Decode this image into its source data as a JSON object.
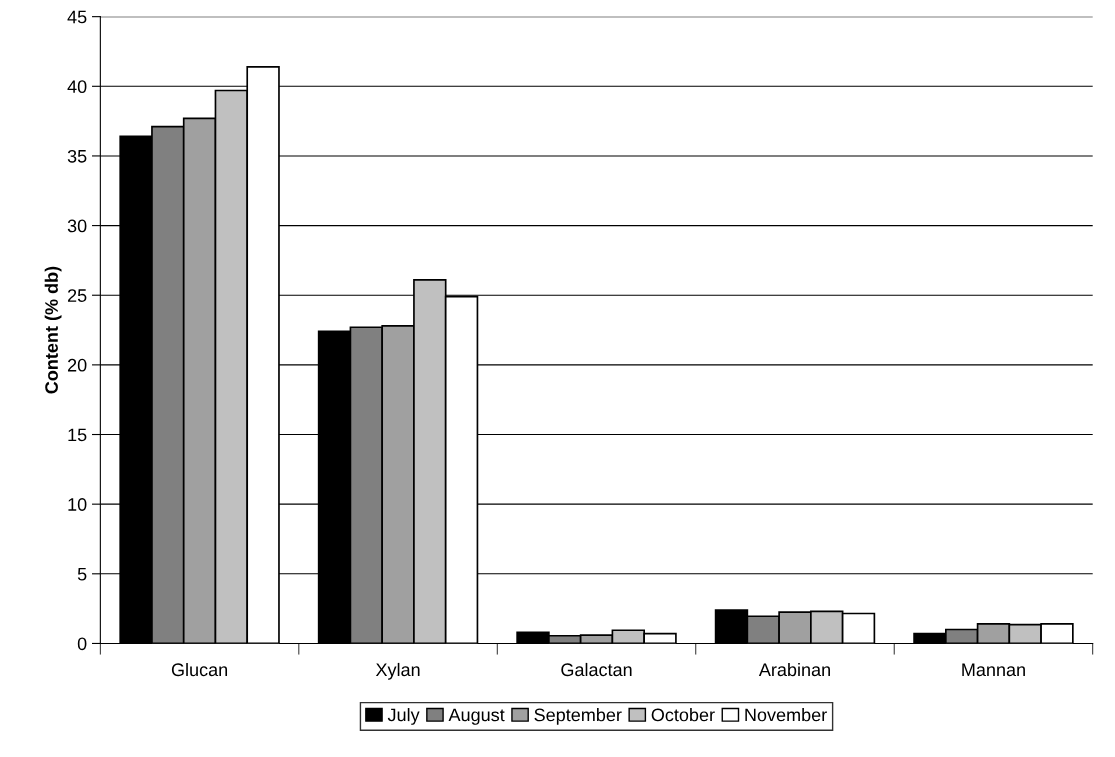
{
  "chart_data": {
    "type": "bar",
    "ylabel": "Content (% db)",
    "categories": [
      "Glucan",
      "Xylan",
      "Galactan",
      "Arabinan",
      "Mannan"
    ],
    "series": [
      {
        "name": "July",
        "color": "#000000",
        "values": [
          36.4,
          22.4,
          0.8,
          2.4,
          0.7
        ]
      },
      {
        "name": "August",
        "color": "#808080",
        "values": [
          37.1,
          22.7,
          0.55,
          1.95,
          1.0
        ]
      },
      {
        "name": "September",
        "color": "#a0a0a0",
        "values": [
          37.7,
          22.8,
          0.6,
          2.25,
          1.4
        ]
      },
      {
        "name": "October",
        "color": "#c0c0c0",
        "values": [
          39.7,
          26.1,
          0.95,
          2.3,
          1.35
        ]
      },
      {
        "name": "November",
        "color": "#ffffff",
        "values": [
          41.4,
          24.9,
          0.7,
          2.15,
          1.4
        ]
      }
    ],
    "ylim": [
      0,
      45
    ],
    "yticks": [
      0,
      5,
      10,
      15,
      20,
      25,
      30,
      35,
      40,
      45
    ],
    "grid": "y",
    "legend": "bottom"
  }
}
